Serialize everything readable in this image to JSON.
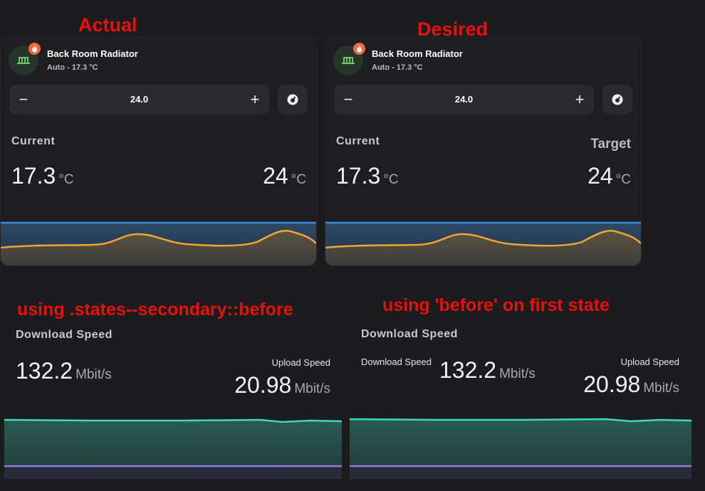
{
  "annotations": {
    "actual": "Actual",
    "desired": "Desired",
    "secondary_before": "using .states--secondary::before",
    "first_state_before": "using 'before' on first state"
  },
  "colors": {
    "annotation": "#e8100b",
    "card_bg": "#1e1e20",
    "temp_line": "#f3a432",
    "target_line": "#3a8bd8",
    "download_line": "#3fd6c2",
    "upload_line": "#8f7fd8",
    "badge": "#ec6a3b",
    "icon_green": "#6fc36b"
  },
  "thermostat_cards": [
    {
      "name": "Back Room Radiator",
      "state": "Auto - 17.3 °C",
      "setpoint": "24.0",
      "minus": "−",
      "plus": "+",
      "current_label": "Current",
      "target_label": "",
      "current_value": "17.3",
      "current_unit": "°C",
      "target_value": "24",
      "target_unit": "°C"
    },
    {
      "name": "Back Room Radiator",
      "state": "Auto - 17.3 °C",
      "setpoint": "24.0",
      "minus": "−",
      "plus": "+",
      "current_label": "Current",
      "target_label": "Target",
      "current_value": "17.3",
      "current_unit": "°C",
      "target_value": "24",
      "target_unit": "°C"
    }
  ],
  "speed_cards": [
    {
      "title": "Download Speed",
      "primary_label": "",
      "primary_value": "132.2",
      "primary_unit": "Mbit/s",
      "secondary_label": "Upload Speed",
      "secondary_value": "20.98",
      "secondary_unit": "Mbit/s"
    },
    {
      "title": "Download Speed",
      "primary_label": "Download Speed",
      "primary_value": "132.2",
      "primary_unit": "Mbit/s",
      "secondary_label": "Upload Speed",
      "secondary_value": "20.98",
      "secondary_unit": "Mbit/s"
    }
  ]
}
